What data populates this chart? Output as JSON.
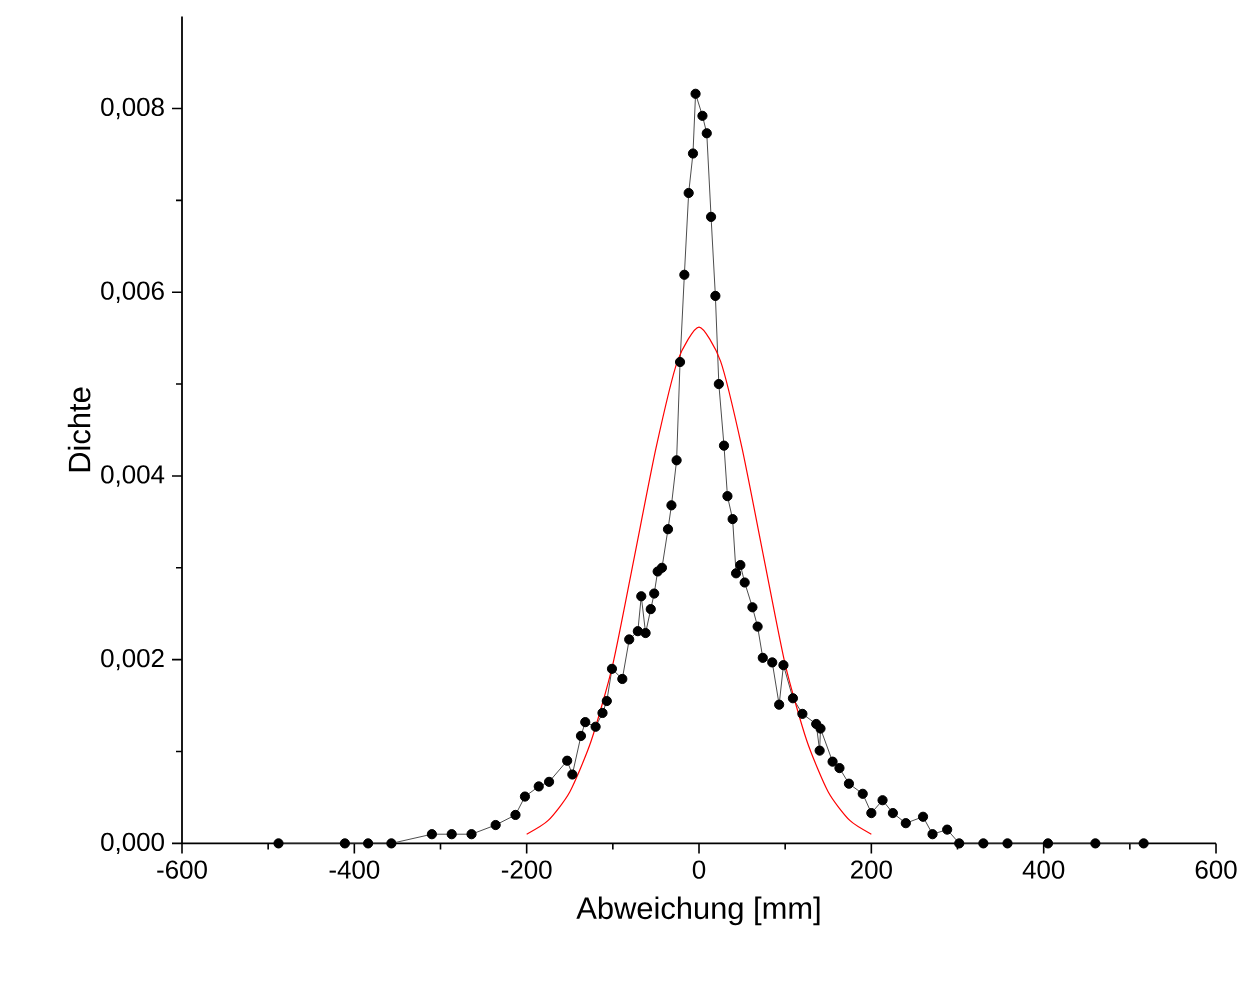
{
  "chart_data": {
    "type": "line",
    "xlabel": "Abweichung [mm]",
    "ylabel": "Dichte",
    "xlim": [
      -600,
      600
    ],
    "ylim": [
      0,
      0.009
    ],
    "xticks": [
      -600,
      -400,
      -200,
      0,
      200,
      400,
      600
    ],
    "yticks": [
      {
        "value": 0,
        "label": "0,000"
      },
      {
        "value": 0.002,
        "label": "0,002"
      },
      {
        "value": 0.004,
        "label": "0,004"
      },
      {
        "value": 0.006,
        "label": "0,006"
      },
      {
        "value": 0.008,
        "label": "0,008"
      }
    ],
    "grid": false,
    "series": [
      {
        "color": "#000000",
        "marker": "circle",
        "line_style": "solid",
        "x": [
          -488,
          -411,
          -384,
          -357,
          -310,
          -287,
          -264,
          -236,
          -213,
          -202,
          -186,
          -174,
          -153,
          -147,
          -137,
          -132,
          -120,
          -112,
          -107,
          -101,
          -89,
          -81,
          -71,
          -67,
          -62,
          -56,
          -52,
          -48,
          -43,
          -36,
          -32,
          -26,
          -22,
          -17,
          -12,
          -7,
          -4,
          4,
          9,
          14,
          19,
          23,
          29,
          33,
          39,
          43,
          48,
          53,
          62,
          68,
          74,
          85,
          93,
          98,
          109,
          120,
          136,
          140,
          141,
          155,
          163,
          174,
          190,
          200,
          213,
          225,
          240,
          260,
          271,
          288,
          302,
          330,
          358,
          405,
          460,
          516
        ],
        "values": [
          0,
          0,
          0,
          0,
          0.0001,
          0.0001,
          0.0001,
          0.0002,
          0.00031,
          0.00051,
          0.00062,
          0.00067,
          0.0009,
          0.00075,
          0.00117,
          0.00132,
          0.00127,
          0.00142,
          0.00155,
          0.0019,
          0.00179,
          0.00222,
          0.00231,
          0.00269,
          0.00229,
          0.00255,
          0.00272,
          0.00296,
          0.003,
          0.00342,
          0.00368,
          0.00417,
          0.00524,
          0.00619,
          0.00708,
          0.00751,
          0.00816,
          0.00792,
          0.00773,
          0.00682,
          0.00596,
          0.005,
          0.00433,
          0.00378,
          0.00353,
          0.00294,
          0.00303,
          0.00284,
          0.00257,
          0.00236,
          0.00202,
          0.00197,
          0.00151,
          0.00194,
          0.00158,
          0.00141,
          0.0013,
          0.00101,
          0.00125,
          0.00089,
          0.00082,
          0.00065,
          0.00054,
          0.00033,
          0.00047,
          0.00033,
          0.00022,
          0.00029,
          0.0001,
          0.00015,
          0,
          0,
          0,
          0,
          0,
          0
        ]
      },
      {
        "color": "#ff0000",
        "marker": "none",
        "line_style": "solid",
        "x": [
          -200,
          -175,
          -150,
          -125,
          -100,
          -75,
          -50,
          -25,
          0,
          25,
          50,
          75,
          100,
          125,
          150,
          175,
          200
        ],
        "values": [
          0.0001,
          0.00025,
          0.00056,
          0.00112,
          0.00195,
          0.00312,
          0.0043,
          0.00525,
          0.00562,
          0.00525,
          0.0043,
          0.00312,
          0.00195,
          0.00112,
          0.00056,
          0.00025,
          0.0001
        ]
      }
    ]
  }
}
